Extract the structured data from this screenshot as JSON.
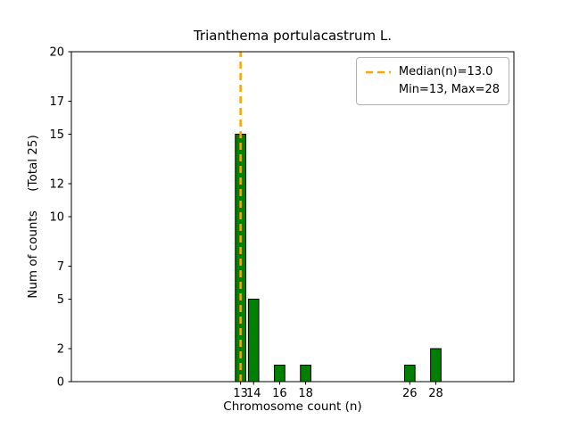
{
  "chart_data": {
    "type": "bar",
    "title": "Trianthema portulacastrum L.",
    "xlabel": "Chromosome count (n)",
    "ylabel": "Num of counts     (Total 25)",
    "total": 25,
    "x": [
      13,
      14,
      16,
      18,
      26,
      28
    ],
    "values": [
      15,
      5,
      1,
      1,
      1,
      2
    ],
    "bar_width": 0.8,
    "bar_color": "#008000",
    "bar_edge_color": "#000000",
    "axis_color": "#000000",
    "background": "#ffffff",
    "xlim": [
      0,
      34
    ],
    "ylim": [
      0,
      20
    ],
    "xticks": [
      13,
      14,
      16,
      18,
      26,
      28
    ],
    "yticks": [
      0,
      2,
      5,
      7,
      10,
      12,
      15,
      17,
      20
    ],
    "median_line": {
      "x": 13.0,
      "color": "#ffa500",
      "width": 2.5,
      "dash": [
        8,
        5
      ]
    },
    "legend": {
      "position": "upper right",
      "entries": [
        "Median(n)=13.0",
        "Min=13, Max=28"
      ]
    },
    "grid": false
  }
}
